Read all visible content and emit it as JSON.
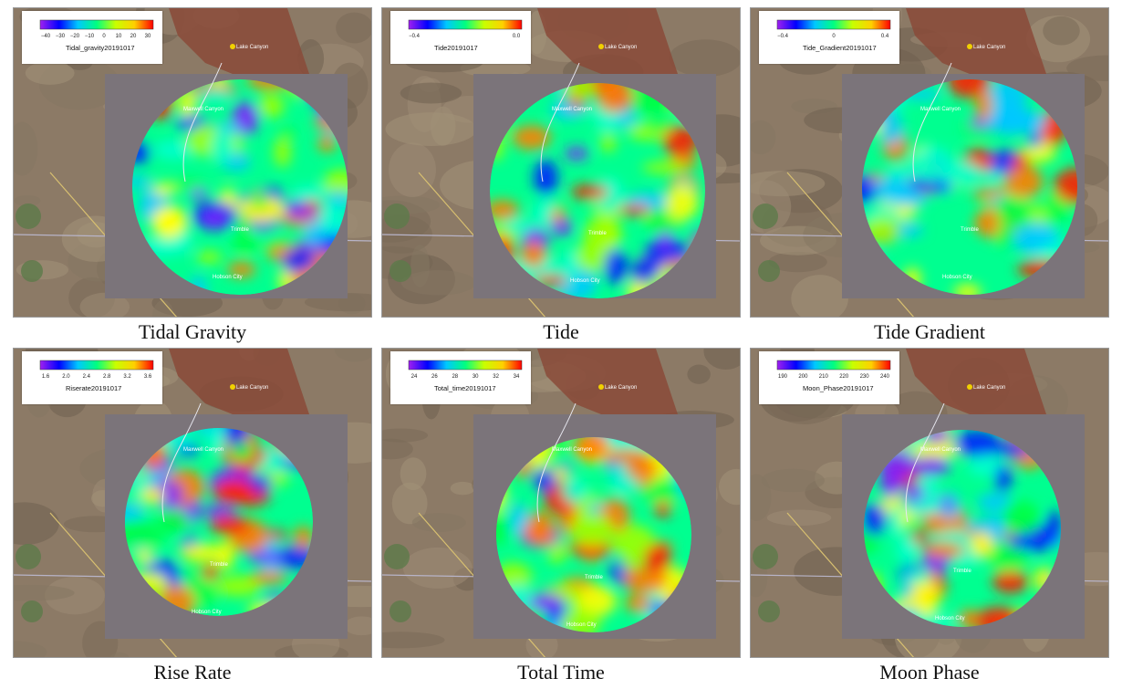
{
  "panels": [
    {
      "caption": "Tidal Gravity",
      "legend_title": "Tidal_gravity20191017",
      "ticks": [
        "−40",
        "−30",
        "−20",
        "−10",
        "0",
        "10",
        "20",
        "30"
      ],
      "scale": "rainbow_purple",
      "place_labels": [
        "Lake Canyon",
        "Maxwell Canyon",
        "Trimble",
        "Hobson City"
      ]
    },
    {
      "caption": "Tide",
      "legend_title": "Tide20191017",
      "ticks": [
        "−0.4",
        "0.0"
      ],
      "scale": "rainbow_purple",
      "place_labels": [
        "Lake Canyon",
        "Maxwell Canyon",
        "Trimble",
        "Hobson City"
      ]
    },
    {
      "caption": "Tide Gradient",
      "legend_title": "Tide_Gradient20191017",
      "ticks": [
        "−0.4",
        "0",
        "0.4"
      ],
      "scale": "rainbow_purple",
      "place_labels": [
        "Lake Canyon",
        "Maxwell Canyon",
        "Trimble",
        "Hobson City"
      ]
    },
    {
      "caption": "Rise Rate",
      "legend_title": "Riserate20191017",
      "ticks": [
        "1.6",
        "2.0",
        "2.4",
        "2.8",
        "3.2",
        "3.6"
      ],
      "scale": "rainbow_purple",
      "place_labels": [
        "Lake Canyon",
        "Maxwell Canyon",
        "Trimble",
        "Hobson City"
      ]
    },
    {
      "caption": "Total Time",
      "legend_title": "Total_time20191017",
      "ticks": [
        "24",
        "26",
        "28",
        "30",
        "32",
        "34"
      ],
      "scale": "rainbow_purple",
      "place_labels": [
        "Lake Canyon",
        "Maxwell Canyon",
        "Trimble",
        "Hobson City"
      ]
    },
    {
      "caption": "Moon Phase",
      "legend_title": "Moon_Phase20191017",
      "ticks": [
        "190",
        "200",
        "210",
        "220",
        "230",
        "240"
      ],
      "scale": "rainbow_purple",
      "place_labels": [
        "Lake Canyon",
        "Maxwell Canyon",
        "Trimble",
        "Hobson City"
      ]
    }
  ],
  "colors": {
    "terrain": "#8c7a66",
    "red_terrain": "#8a4a38",
    "gray_overlay": "#7b747a",
    "colorbar": [
      "#a020f0",
      "#0000ff",
      "#00c8ff",
      "#00ff80",
      "#c8ff00",
      "#ffd000",
      "#ff0000"
    ]
  }
}
